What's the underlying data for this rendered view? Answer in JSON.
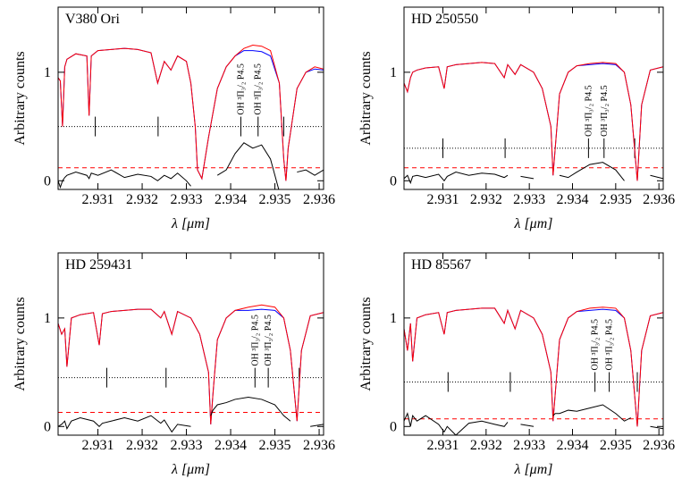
{
  "chart_data": [
    {
      "type": "line",
      "title": "V380 Ori",
      "xlabel": "λ [μm]",
      "ylabel": "Arbitrary counts",
      "xlim": [
        2.9301,
        2.9361
      ],
      "ylim": [
        -0.08,
        1.6
      ],
      "xticks": [
        2.931,
        2.932,
        2.933,
        2.934,
        2.935,
        2.936
      ],
      "yticks": [
        0,
        1
      ],
      "x": [
        2.9301,
        2.93015,
        2.9302,
        2.93025,
        2.9303,
        2.9305,
        2.93075,
        2.9308,
        2.93085,
        2.931,
        2.9313,
        2.9316,
        2.9319,
        2.9322,
        2.93235,
        2.9325,
        2.93265,
        2.9328,
        2.933,
        2.9331,
        2.9332,
        2.93325,
        2.93335,
        2.9335,
        2.9337,
        2.9339,
        2.9341,
        2.9343,
        2.9345,
        2.9347,
        2.9349,
        2.9351,
        2.9352,
        2.93525,
        2.9353,
        2.9355,
        2.9357,
        2.9359,
        2.9361
      ],
      "series": [
        {
          "color": "#0000ff",
          "values": [
            0.95,
            0.92,
            0.5,
            1.05,
            1.12,
            1.17,
            1.15,
            0.6,
            1.15,
            1.2,
            1.21,
            1.22,
            1.21,
            1.18,
            0.9,
            1.1,
            1.02,
            1.15,
            1.1,
            0.9,
            0.5,
            0.1,
            0.02,
            0.4,
            0.85,
            1.05,
            1.15,
            1.2,
            1.2,
            1.19,
            1.15,
            0.9,
            0.2,
            0.0,
            0.3,
            0.85,
            1.0,
            1.03,
            1.02
          ]
        },
        {
          "color": "#ff0000",
          "values": [
            0.95,
            0.92,
            0.5,
            1.05,
            1.12,
            1.17,
            1.15,
            0.6,
            1.15,
            1.2,
            1.21,
            1.22,
            1.21,
            1.18,
            0.9,
            1.1,
            1.02,
            1.15,
            1.1,
            0.9,
            0.5,
            0.1,
            0.02,
            0.4,
            0.85,
            1.05,
            1.15,
            1.22,
            1.25,
            1.24,
            1.2,
            0.9,
            0.2,
            0.0,
            0.3,
            0.85,
            1.0,
            1.05,
            1.03
          ]
        },
        {
          "color": "#000000",
          "values": [
            0.0,
            -0.06,
            0.0,
            0.03,
            0.05,
            0.08,
            0.05,
            0.02,
            0.07,
            0.05,
            0.1,
            0.03,
            0.06,
            0.04,
            0.0,
            0.05,
            0.02,
            0.07,
            0.0,
            -0.05,
            null,
            null,
            null,
            null,
            0.05,
            0.1,
            0.25,
            0.35,
            0.3,
            0.33,
            0.2,
            -0.1,
            null,
            null,
            null,
            0.08,
            0.1,
            0.05,
            0.1
          ]
        }
      ],
      "hlines": [
        {
          "value": 0.5,
          "color": "#000000",
          "style": "dotted"
        },
        {
          "value": 0.12,
          "color": "#ff0000",
          "style": "dashed"
        }
      ],
      "markers": [
        2.93094,
        2.93236,
        2.93423,
        2.93462,
        2.9352
      ],
      "annotations": [
        "OH ³Π₃/₂ P4.5",
        "OH ³Π₃/₂ P4.5"
      ]
    },
    {
      "type": "line",
      "title": "HD 250550",
      "xlabel": "λ [μm]",
      "ylabel": "Arbitrary counts",
      "xlim": [
        2.9301,
        2.9361
      ],
      "ylim": [
        -0.08,
        1.6
      ],
      "xticks": [
        2.931,
        2.932,
        2.933,
        2.934,
        2.935,
        2.936
      ],
      "yticks": [
        0,
        1
      ],
      "x": [
        2.9301,
        2.93018,
        2.93025,
        2.9303,
        2.9304,
        2.9306,
        2.9309,
        2.93103,
        2.9311,
        2.9313,
        2.9316,
        2.9319,
        2.9322,
        2.93242,
        2.9325,
        2.93267,
        2.9328,
        2.9331,
        2.9333,
        2.9335,
        2.93355,
        2.9336,
        2.9337,
        2.9339,
        2.9341,
        2.9344,
        2.9347,
        2.935,
        2.9352,
        2.93535,
        2.9355,
        2.9356,
        2.9358,
        2.9361
      ],
      "series": [
        {
          "color": "#0000ff",
          "values": [
            0.9,
            0.82,
            0.95,
            1.0,
            1.02,
            1.04,
            1.05,
            0.85,
            1.05,
            1.07,
            1.08,
            1.09,
            1.08,
            0.95,
            1.07,
            0.98,
            1.07,
            1.0,
            0.85,
            0.5,
            0.05,
            0.3,
            0.8,
            1.0,
            1.06,
            1.07,
            1.08,
            1.07,
            1.0,
            0.7,
            0.0,
            0.7,
            1.02,
            1.05
          ]
        },
        {
          "color": "#ff0000",
          "values": [
            0.9,
            0.82,
            0.95,
            1.0,
            1.02,
            1.04,
            1.05,
            0.85,
            1.05,
            1.07,
            1.08,
            1.09,
            1.08,
            0.95,
            1.07,
            0.98,
            1.07,
            1.0,
            0.85,
            0.5,
            0.05,
            0.3,
            0.8,
            1.0,
            1.06,
            1.08,
            1.09,
            1.08,
            1.0,
            0.7,
            0.0,
            0.7,
            1.02,
            1.05
          ]
        },
        {
          "color": "#000000",
          "values": [
            0.02,
            0.05,
            -0.02,
            0.04,
            0.05,
            0.03,
            0.06,
            0.0,
            0.04,
            0.08,
            0.05,
            0.07,
            0.06,
            0.03,
            0.05,
            null,
            0.04,
            0.02,
            null,
            null,
            0.0,
            null,
            0.05,
            0.03,
            0.08,
            0.15,
            0.17,
            0.1,
            0.0,
            null,
            null,
            null,
            0.05,
            0.02
          ]
        }
      ],
      "hlines": [
        {
          "value": 0.3,
          "color": "#000000",
          "style": "dotted"
        },
        {
          "value": 0.12,
          "color": "#ff0000",
          "style": "dashed"
        }
      ],
      "markers": [
        2.931,
        2.93244,
        2.93437,
        2.93473,
        2.93544
      ],
      "annotations": [
        "OH ³Π₃/₂ P4.5",
        "OH ³Π₃/₂ P4.5"
      ]
    },
    {
      "type": "line",
      "title": "HD 259431",
      "xlabel": "λ [μm]",
      "ylabel": "Arbitrary counts",
      "xlim": [
        2.9301,
        2.9361
      ],
      "ylim": [
        -0.08,
        1.6
      ],
      "xticks": [
        2.931,
        2.932,
        2.933,
        2.934,
        2.935,
        2.936
      ],
      "yticks": [
        0,
        1
      ],
      "x": [
        2.9301,
        2.93018,
        2.93025,
        2.9303,
        2.9304,
        2.9306,
        2.9309,
        2.93103,
        2.9311,
        2.9313,
        2.9316,
        2.9319,
        2.9322,
        2.93242,
        2.9325,
        2.93267,
        2.9328,
        2.9331,
        2.9333,
        2.9335,
        2.93355,
        2.9336,
        2.9337,
        2.9339,
        2.9341,
        2.9344,
        2.9347,
        2.935,
        2.9352,
        2.93535,
        2.9355,
        2.9356,
        2.9358,
        2.9361
      ],
      "series": [
        {
          "color": "#0000ff",
          "values": [
            0.95,
            0.85,
            0.9,
            0.55,
            1.0,
            1.03,
            1.05,
            0.75,
            1.04,
            1.06,
            1.07,
            1.08,
            1.08,
            1.0,
            1.06,
            0.85,
            1.06,
            1.0,
            0.85,
            0.5,
            0.02,
            0.3,
            0.8,
            1.0,
            1.07,
            1.07,
            1.08,
            1.07,
            1.0,
            0.7,
            0.05,
            0.7,
            1.02,
            1.05
          ]
        },
        {
          "color": "#ff0000",
          "values": [
            0.95,
            0.85,
            0.9,
            0.55,
            1.0,
            1.03,
            1.05,
            0.75,
            1.04,
            1.06,
            1.07,
            1.08,
            1.08,
            1.0,
            1.06,
            0.85,
            1.06,
            1.0,
            0.85,
            0.5,
            0.02,
            0.3,
            0.8,
            1.0,
            1.07,
            1.1,
            1.12,
            1.1,
            1.0,
            0.7,
            0.05,
            0.7,
            1.02,
            1.05
          ]
        },
        {
          "color": "#000000",
          "values": [
            0.0,
            0.02,
            0.05,
            -0.02,
            0.05,
            0.08,
            0.05,
            0.0,
            0.03,
            0.05,
            0.08,
            0.05,
            0.1,
            0.03,
            0.06,
            -0.05,
            0.02,
            0.0,
            null,
            null,
            0.1,
            0.15,
            0.2,
            0.22,
            0.25,
            0.27,
            0.25,
            0.2,
            0.1,
            0.05,
            null,
            null,
            0.0,
            0.02
          ]
        }
      ],
      "hlines": [
        {
          "value": 0.45,
          "color": "#000000",
          "style": "dotted"
        },
        {
          "value": 0.13,
          "color": "#ff0000",
          "style": "dashed"
        }
      ],
      "markers": [
        2.9312,
        2.93254,
        2.93455,
        2.93485,
        2.93555
      ],
      "annotations": [
        "OH ³Π₃/₂ P4.5",
        "OH ³Π₃/₂ P4.5"
      ]
    },
    {
      "type": "line",
      "title": "HD 85567",
      "xlabel": "λ [μm]",
      "ylabel": "Arbitrary counts",
      "xlim": [
        2.9301,
        2.9361
      ],
      "ylim": [
        -0.08,
        1.6
      ],
      "xticks": [
        2.931,
        2.932,
        2.933,
        2.934,
        2.935,
        2.936
      ],
      "yticks": [
        0,
        1
      ],
      "x": [
        2.9301,
        2.93018,
        2.93025,
        2.9303,
        2.9304,
        2.9306,
        2.9309,
        2.93103,
        2.9311,
        2.9313,
        2.9316,
        2.9319,
        2.9322,
        2.93242,
        2.9325,
        2.93267,
        2.9328,
        2.9331,
        2.9333,
        2.9335,
        2.93355,
        2.9336,
        2.9337,
        2.9339,
        2.9341,
        2.9344,
        2.9347,
        2.935,
        2.9352,
        2.93535,
        2.9355,
        2.9356,
        2.9358,
        2.9361
      ],
      "series": [
        {
          "color": "#0000ff",
          "values": [
            0.9,
            0.7,
            0.95,
            0.6,
            1.0,
            1.03,
            1.05,
            0.85,
            1.05,
            1.07,
            1.08,
            1.09,
            1.09,
            0.95,
            1.07,
            0.9,
            1.07,
            1.0,
            0.85,
            0.5,
            0.05,
            0.3,
            0.8,
            1.0,
            1.06,
            1.07,
            1.08,
            1.07,
            1.0,
            0.7,
            0.0,
            0.7,
            1.02,
            1.05
          ]
        },
        {
          "color": "#ff0000",
          "values": [
            0.9,
            0.7,
            0.95,
            0.6,
            1.0,
            1.03,
            1.05,
            0.85,
            1.05,
            1.07,
            1.08,
            1.09,
            1.09,
            0.95,
            1.07,
            0.9,
            1.07,
            1.0,
            0.85,
            0.5,
            0.05,
            0.3,
            0.8,
            1.0,
            1.06,
            1.09,
            1.1,
            1.09,
            1.0,
            0.7,
            0.0,
            0.7,
            1.02,
            1.05
          ]
        },
        {
          "color": "#000000",
          "values": [
            0.05,
            0.12,
            0.0,
            0.1,
            0.05,
            0.1,
            0.02,
            -0.05,
            0.0,
            -0.08,
            0.03,
            0.05,
            0.02,
            0.0,
            0.04,
            null,
            0.02,
            0.0,
            null,
            null,
            0.1,
            0.12,
            0.12,
            0.15,
            0.14,
            0.17,
            0.2,
            0.12,
            0.05,
            0.08,
            null,
            null,
            0.0,
            -0.02
          ]
        }
      ],
      "hlines": [
        {
          "value": 0.41,
          "color": "#000000",
          "style": "dotted"
        },
        {
          "value": 0.07,
          "color": "#ff0000",
          "style": "dashed"
        }
      ],
      "markers": [
        2.93112,
        2.93256,
        2.93452,
        2.93485,
        2.9355
      ],
      "annotations": [
        "OH ³Π₃/₂ P4.5",
        "OH ³Π₃/₂ P4.5"
      ]
    }
  ]
}
